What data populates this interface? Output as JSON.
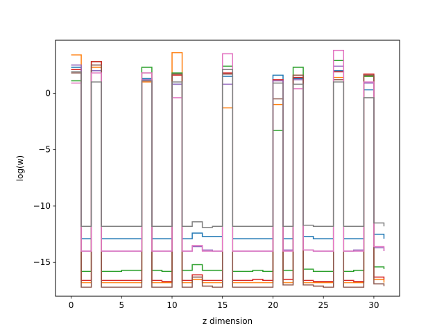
{
  "chart_data": {
    "type": "line",
    "step": "post",
    "xlabel": "z dimension",
    "ylabel": "log(w)",
    "xlim": [
      -1.55,
      32.55
    ],
    "ylim": [
      -18.0,
      4.7
    ],
    "x_ticks": [
      0,
      5,
      10,
      15,
      20,
      25,
      30
    ],
    "y_ticks": [
      -15,
      -10,
      -5,
      0
    ],
    "y_tick_labels": [
      "−15",
      "−10",
      "−5",
      "0"
    ],
    "grid": false,
    "legend": "none",
    "x": [
      0,
      1,
      2,
      3,
      4,
      5,
      6,
      7,
      8,
      9,
      10,
      11,
      12,
      13,
      14,
      15,
      16,
      17,
      18,
      19,
      20,
      21,
      22,
      23,
      24,
      25,
      26,
      27,
      28,
      29,
      30,
      31
    ],
    "series": [
      {
        "color": "#1f77b4",
        "values": [
          2.3,
          -12.9,
          2.0,
          -12.9,
          -12.9,
          -12.9,
          -12.9,
          1.3,
          -12.9,
          -12.9,
          0.8,
          -12.9,
          -12.4,
          -12.7,
          -12.7,
          1.5,
          -12.9,
          -12.9,
          -12.9,
          -12.9,
          1.6,
          -12.9,
          1.3,
          -12.7,
          -12.9,
          -12.9,
          2.0,
          -12.9,
          -12.9,
          0.3,
          -12.5,
          -12.9
        ]
      },
      {
        "color": "#ff7f0e",
        "values": [
          3.4,
          -16.8,
          2.3,
          -16.8,
          -16.8,
          -16.8,
          -16.8,
          1.0,
          -16.8,
          -16.8,
          3.6,
          -16.8,
          -16.5,
          -16.8,
          -16.8,
          -1.3,
          -16.8,
          -16.8,
          -16.8,
          -16.8,
          -1.0,
          -16.8,
          1.6,
          -16.8,
          -16.8,
          -16.8,
          1.4,
          -16.8,
          -16.8,
          1.5,
          -16.5,
          -16.8
        ]
      },
      {
        "color": "#2ca02c",
        "values": [
          1.1,
          -15.8,
          2.8,
          -15.8,
          -15.8,
          -15.7,
          -15.7,
          2.3,
          -15.7,
          -15.8,
          1.8,
          -15.7,
          -15.2,
          -15.7,
          -15.7,
          2.4,
          -15.8,
          -15.8,
          -15.7,
          -15.8,
          -3.3,
          -15.7,
          2.3,
          -15.6,
          -15.8,
          -15.8,
          2.9,
          -15.8,
          -15.7,
          1.5,
          -15.4,
          -15.6
        ]
      },
      {
        "color": "#d62728",
        "values": [
          2.1,
          -16.6,
          2.8,
          -16.6,
          -16.6,
          -16.6,
          -16.6,
          1.1,
          -16.6,
          -16.7,
          1.6,
          -16.6,
          -16.1,
          -16.6,
          -16.6,
          1.8,
          -16.6,
          -16.6,
          -16.5,
          -16.6,
          1.2,
          -16.5,
          1.4,
          -16.6,
          -16.7,
          -16.7,
          1.9,
          -16.6,
          -16.7,
          1.7,
          -16.3,
          -16.5
        ]
      },
      {
        "color": "#9467bd",
        "values": [
          2.5,
          -14.0,
          2.0,
          -14.0,
          -14.0,
          -14.0,
          -14.0,
          1.2,
          -14.0,
          -14.0,
          0.8,
          -14.0,
          -13.6,
          -13.9,
          -14.0,
          0.8,
          -14.0,
          -14.0,
          -14.0,
          -14.0,
          1.1,
          -13.9,
          1.2,
          -13.9,
          -14.0,
          -14.0,
          2.4,
          -14.0,
          -13.9,
          0.9,
          -13.7,
          -14.0
        ]
      },
      {
        "color": "#8c564b",
        "values": [
          1.8,
          -17.2,
          2.5,
          -17.2,
          -17.2,
          -17.2,
          -17.2,
          1.8,
          -17.2,
          -17.2,
          1.7,
          -17.2,
          -16.3,
          -17.1,
          -17.2,
          1.7,
          -17.2,
          -17.2,
          -17.2,
          -17.2,
          -0.5,
          -17.0,
          1.6,
          -17.0,
          -17.1,
          -17.2,
          1.2,
          -17.2,
          -17.2,
          1.6,
          -16.9,
          -17.1
        ]
      },
      {
        "color": "#e377c2",
        "values": [
          0.9,
          -14.0,
          1.8,
          -14.0,
          -14.0,
          -14.0,
          -14.0,
          1.8,
          -14.0,
          -14.0,
          -0.4,
          -14.0,
          -13.5,
          -14.0,
          -14.0,
          3.5,
          -14.0,
          -14.0,
          -14.0,
          -14.0,
          0.9,
          -14.0,
          0.4,
          -13.9,
          -14.0,
          -14.0,
          3.8,
          -14.0,
          -14.0,
          1.0,
          -13.6,
          -14.0
        ]
      },
      {
        "color": "#7f7f7f",
        "values": [
          1.9,
          -11.8,
          1.0,
          -11.8,
          -11.8,
          -11.8,
          -11.8,
          1.1,
          -11.8,
          -11.8,
          1.0,
          -11.8,
          -11.4,
          -11.9,
          -11.8,
          2.1,
          -11.8,
          -11.8,
          -11.8,
          -11.8,
          0.9,
          -11.8,
          0.8,
          -11.7,
          -11.8,
          -11.8,
          1.0,
          -11.8,
          -11.8,
          -0.4,
          -11.5,
          -11.8
        ]
      }
    ]
  }
}
